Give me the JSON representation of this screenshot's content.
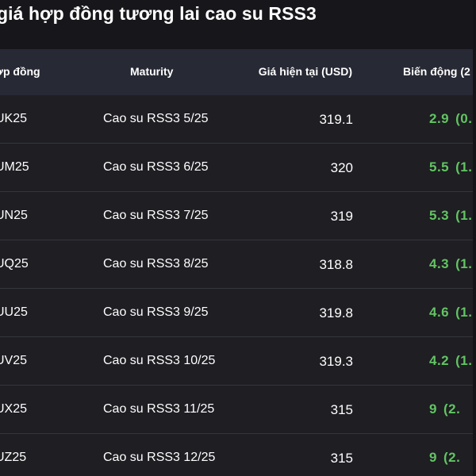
{
  "title": "giá hợp đồng tương lai cao su RSS3",
  "table": {
    "headers": {
      "code": "ợp đồng",
      "maturity": "Maturity",
      "price": "Giá hiện tại (USD)",
      "change": "Biến động (2"
    },
    "rows": [
      {
        "code": "UK25",
        "maturity": "Cao su RSS3 5/25",
        "price": "319.1",
        "change": "2.9",
        "change_pct": "(0."
      },
      {
        "code": "UM25",
        "maturity": "Cao su RSS3 6/25",
        "price": "320",
        "change": "5.5",
        "change_pct": "(1."
      },
      {
        "code": "UN25",
        "maturity": "Cao su RSS3 7/25",
        "price": "319",
        "change": "5.3",
        "change_pct": "(1."
      },
      {
        "code": "UQ25",
        "maturity": "Cao su RSS3 8/25",
        "price": "318.8",
        "change": "4.3",
        "change_pct": "(1."
      },
      {
        "code": "UU25",
        "maturity": "Cao su RSS3 9/25",
        "price": "319.8",
        "change": "4.6",
        "change_pct": "(1."
      },
      {
        "code": "UV25",
        "maturity": "Cao su RSS3 10/25",
        "price": "319.3",
        "change": "4.2",
        "change_pct": "(1."
      },
      {
        "code": "UX25",
        "maturity": "Cao su RSS3 11/25",
        "price": "315",
        "change": "9",
        "change_pct": "(2."
      },
      {
        "code": "UZ25",
        "maturity": "Cao su RSS3 12/25",
        "price": "315",
        "change": "9",
        "change_pct": "(2."
      }
    ]
  },
  "colors": {
    "background": "#1e1e23",
    "header_background": "#272a35",
    "positive_change": "#62c462"
  }
}
